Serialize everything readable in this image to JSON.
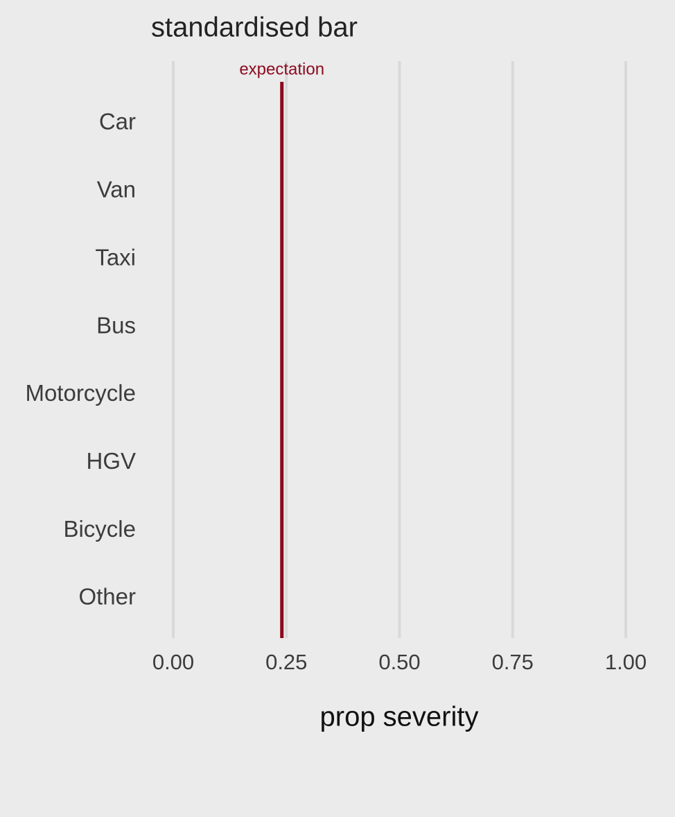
{
  "chart_data": {
    "type": "bar",
    "orientation": "horizontal",
    "title": "standardised bar",
    "x_label": "prop severity",
    "categories": [
      "Car",
      "Van",
      "Taxi",
      "Bus",
      "Motorcycle",
      "HGV",
      "Bicycle",
      "Other"
    ],
    "xlim": [
      0,
      1
    ],
    "xticks": [
      {
        "value": 0,
        "label": "0.00"
      },
      {
        "value": 0.25,
        "label": "0.25"
      },
      {
        "value": 0.5,
        "label": "0.50"
      },
      {
        "value": 0.75,
        "label": "0.75"
      },
      {
        "value": 1,
        "label": "1.00"
      }
    ],
    "grid": true,
    "reference_line": {
      "label": "expectation",
      "value": 0.24,
      "color": "#8b0a1e"
    }
  }
}
